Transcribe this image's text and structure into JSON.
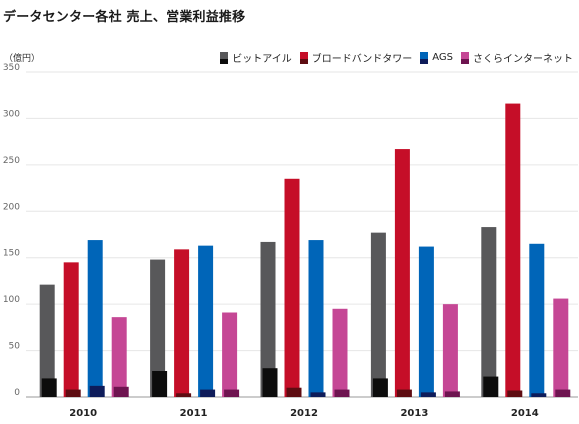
{
  "title": "データセンター各社 売上、営業利益推移",
  "colors": {
    "ビットアイル": {
      "sales": "#58585a",
      "profit": "#0c0c0c"
    },
    "ブロードバンドタワー": {
      "sales": "#c50e28",
      "profit": "#5e0c12"
    },
    "AGS": {
      "sales": "#0065b8",
      "profit": "#0e1c5a"
    },
    "さくらインターネット": {
      "sales": "#c54795",
      "profit": "#6e1450"
    }
  },
  "chart_data": {
    "type": "bar",
    "title": "データセンター各社 売上、営業利益推移",
    "ylabel": "（億円）",
    "xlabel": "",
    "ylim": [
      0,
      350
    ],
    "yticks": [
      0,
      50,
      100,
      150,
      200,
      250,
      300,
      350
    ],
    "categories": [
      "2010",
      "2011",
      "2012",
      "2013",
      "2014"
    ],
    "legend": [
      "ビットアイル",
      "ブロードバンドタワー",
      "AGS",
      "さくらインターネット"
    ],
    "legend_position": "top-right",
    "grid": true,
    "series": [
      {
        "name": "ビットアイル",
        "sales": [
          121,
          148,
          167,
          177,
          183
        ],
        "profit": [
          20,
          28,
          31,
          20,
          22
        ]
      },
      {
        "name": "ブロードバンドタワー",
        "sales": [
          145,
          159,
          235,
          267,
          316
        ],
        "profit": [
          8,
          4,
          10,
          8,
          7
        ]
      },
      {
        "name": "AGS",
        "sales": [
          169,
          163,
          169,
          162,
          165
        ],
        "profit": [
          12,
          8,
          5,
          5,
          4
        ]
      },
      {
        "name": "さくらインターネット",
        "sales": [
          86,
          91,
          95,
          100,
          106
        ],
        "profit": [
          11,
          8,
          8,
          6,
          8
        ]
      }
    ]
  }
}
